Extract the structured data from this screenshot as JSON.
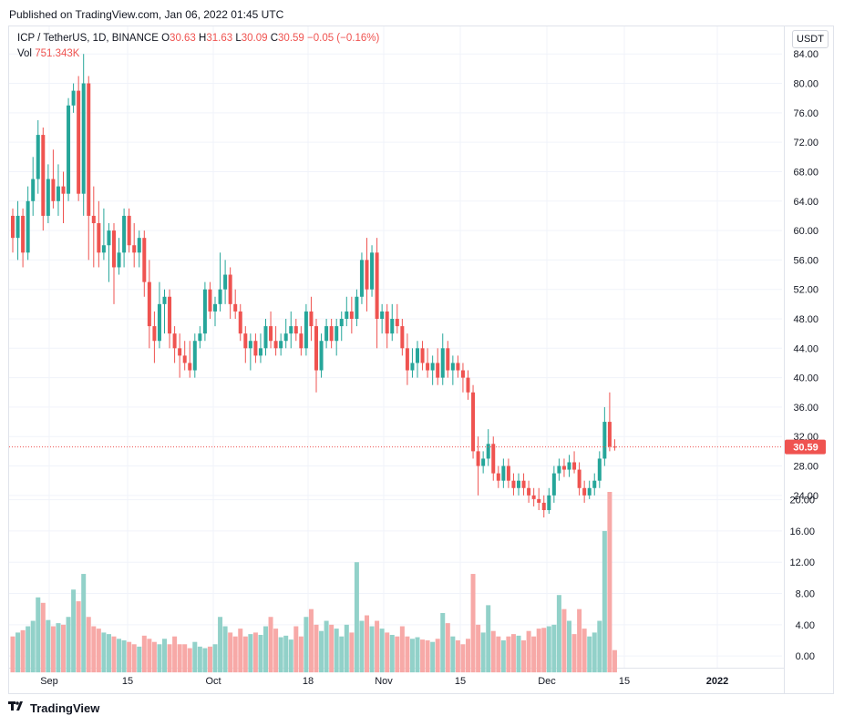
{
  "published_text": "Published on TradingView.com, Jan 06, 2022 01:45 UTC",
  "legend": {
    "symbol": "ICP / TetherUS, 1D, BINANCE",
    "o_label": "O",
    "o": "30.63",
    "h_label": "H",
    "h": "31.63",
    "l_label": "L",
    "l": "30.09",
    "c_label": "C",
    "c": "30.59",
    "change": "−0.05 (−0.16%)",
    "vol_label": "Vol",
    "vol": "751.343K"
  },
  "currency_button": "USDT",
  "last_price_label": "30.59",
  "brand": "TradingView",
  "colors": {
    "up": "#26a69a",
    "down": "#ef5350",
    "vol_up": "#92d1c9",
    "vol_down": "#f7a9a7",
    "grid": "#f0f3fa"
  },
  "chart_data": {
    "type": "candlestick",
    "price_axis": {
      "ticks": [
        "84.00",
        "80.00",
        "76.00",
        "72.00",
        "68.00",
        "64.00",
        "60.00",
        "56.00",
        "52.00",
        "48.00",
        "44.00",
        "40.00",
        "36.00",
        "32.00",
        "28.00",
        "24.00"
      ],
      "range": [
        22,
        87
      ]
    },
    "volume_axis": {
      "ticks": [
        "20.00",
        "16.00",
        "12.00",
        "8.00",
        "4.00",
        "0.00"
      ],
      "unit": "M",
      "range": [
        -1.5,
        21
      ]
    },
    "time_axis": {
      "ticks": [
        "Sep",
        "15",
        "Oct",
        "18",
        "Nov",
        "15",
        "Dec",
        "15",
        "2022"
      ]
    },
    "last_price": 30.59,
    "candles": [
      [
        62.0,
        63.0,
        57.0,
        59.0,
        2.5
      ],
      [
        59.0,
        64.0,
        56.0,
        62.0,
        3.0
      ],
      [
        62.0,
        63.0,
        55.0,
        57.0,
        3.3
      ],
      [
        57.0,
        66.0,
        56.0,
        64.0,
        3.8
      ],
      [
        64.0,
        70.0,
        62.0,
        67.0,
        4.5
      ],
      [
        67.0,
        75.0,
        65.0,
        73.0,
        7.5
      ],
      [
        73.0,
        74.0,
        60.0,
        62.0,
        6.8
      ],
      [
        62.0,
        69.0,
        61.0,
        67.0,
        4.6
      ],
      [
        67.0,
        71.0,
        63.0,
        64.0,
        3.8
      ],
      [
        64.0,
        69.0,
        62.0,
        66.0,
        4.2
      ],
      [
        66.0,
        68.0,
        61.0,
        65.0,
        4.0
      ],
      [
        65.0,
        78.0,
        64.0,
        77.0,
        5.0
      ],
      [
        77.0,
        80.0,
        76.0,
        79.0,
        8.5
      ],
      [
        79.0,
        81.0,
        64.0,
        65.0,
        7.0
      ],
      [
        65.0,
        84.0,
        62.0,
        80.0,
        10.5
      ],
      [
        80.0,
        81.0,
        56.0,
        62.0,
        5.0
      ],
      [
        62.0,
        66.0,
        55.0,
        61.0,
        3.8
      ],
      [
        61.0,
        64.0,
        55.0,
        57.0,
        3.5
      ],
      [
        57.0,
        63.0,
        56.0,
        58.0,
        3.0
      ],
      [
        58.0,
        61.0,
        53.0,
        60.0,
        2.8
      ],
      [
        60.0,
        61.0,
        50.0,
        55.0,
        2.5
      ],
      [
        55.0,
        59.0,
        54.0,
        57.0,
        2.2
      ],
      [
        57.0,
        63.0,
        55.0,
        62.0,
        2.0
      ],
      [
        62.0,
        63.0,
        57.0,
        58.0,
        1.8
      ],
      [
        58.0,
        61.0,
        55.0,
        57.0,
        1.5
      ],
      [
        57.0,
        60.0,
        55.0,
        59.0,
        1.2
      ],
      [
        59.0,
        60.0,
        51.0,
        53.0,
        2.6
      ],
      [
        53.0,
        56.0,
        44.0,
        47.0,
        2.2
      ],
      [
        47.0,
        49.0,
        42.0,
        45.0,
        1.8
      ],
      [
        45.0,
        53.0,
        44.0,
        50.0,
        1.5
      ],
      [
        50.0,
        52.0,
        46.0,
        51.0,
        2.2
      ],
      [
        51.0,
        52.0,
        44.0,
        46.0,
        1.5
      ],
      [
        46.0,
        47.0,
        42.0,
        44.0,
        2.5
      ],
      [
        44.0,
        46.0,
        40.0,
        43.0,
        1.5
      ],
      [
        43.0,
        45.0,
        41.0,
        42.0,
        1.5
      ],
      [
        42.0,
        45.0,
        40.0,
        41.0,
        1.0
      ],
      [
        41.0,
        46.0,
        40.0,
        45.0,
        1.8
      ],
      [
        45.0,
        47.0,
        44.0,
        46.0,
        1.2
      ],
      [
        46.0,
        53.0,
        45.0,
        52.0,
        1.0
      ],
      [
        52.0,
        53.0,
        48.0,
        49.0,
        1.2
      ],
      [
        49.0,
        51.0,
        47.0,
        50.0,
        1.5
      ],
      [
        50.0,
        57.0,
        49.0,
        52.0,
        5.0
      ],
      [
        52.0,
        56.0,
        50.0,
        54.0,
        3.8
      ],
      [
        54.0,
        55.0,
        48.0,
        50.0,
        3.0
      ],
      [
        50.0,
        52.0,
        48.0,
        49.0,
        2.5
      ],
      [
        49.0,
        50.0,
        45.0,
        46.0,
        3.5
      ],
      [
        46.0,
        47.0,
        42.0,
        44.0,
        2.5
      ],
      [
        44.0,
        46.0,
        41.0,
        45.0,
        2.8
      ],
      [
        45.0,
        46.0,
        42.0,
        43.0,
        3.0
      ],
      [
        43.0,
        46.0,
        42.0,
        44.0,
        2.7
      ],
      [
        44.0,
        48.0,
        43.0,
        47.0,
        3.8
      ],
      [
        47.0,
        49.0,
        44.0,
        45.0,
        5.0
      ],
      [
        45.0,
        47.0,
        43.0,
        44.0,
        3.5
      ],
      [
        44.0,
        46.0,
        43.0,
        45.0,
        2.4
      ],
      [
        45.0,
        48.0,
        44.0,
        46.0,
        2.6
      ],
      [
        46.0,
        49.0,
        44.0,
        47.0,
        2.1
      ],
      [
        47.0,
        48.0,
        45.0,
        46.0,
        3.8
      ],
      [
        46.0,
        47.0,
        43.0,
        44.0,
        2.5
      ],
      [
        44.0,
        50.0,
        43.0,
        49.0,
        5.0
      ],
      [
        49.0,
        51.0,
        45.0,
        47.0,
        6.0
      ],
      [
        47.0,
        48.0,
        38.0,
        41.0,
        4.0
      ],
      [
        41.0,
        46.0,
        40.0,
        45.0,
        3.2
      ],
      [
        45.0,
        48.0,
        44.0,
        47.0,
        4.5
      ],
      [
        47.0,
        48.0,
        44.0,
        45.0,
        4.0
      ],
      [
        45.0,
        48.0,
        43.0,
        47.0,
        3.5
      ],
      [
        47.0,
        49.0,
        45.0,
        48.0,
        2.5
      ],
      [
        48.0,
        51.0,
        47.0,
        49.0,
        4.0
      ],
      [
        49.0,
        51.0,
        46.0,
        48.0,
        3.0
      ],
      [
        48.0,
        52.0,
        47.0,
        51.0,
        12.0
      ],
      [
        51.0,
        57.0,
        50.0,
        56.0,
        4.5
      ],
      [
        56.0,
        59.0,
        49.0,
        52.0,
        5.2
      ],
      [
        52.0,
        58.0,
        51.0,
        57.0,
        3.8
      ],
      [
        57.0,
        59.0,
        44.0,
        48.0,
        4.5
      ],
      [
        48.0,
        50.0,
        46.0,
        49.0,
        3.5
      ],
      [
        49.0,
        50.0,
        44.0,
        46.0,
        3.0
      ],
      [
        46.0,
        50.0,
        45.0,
        48.0,
        2.7
      ],
      [
        48.0,
        50.0,
        46.0,
        47.0,
        2.5
      ],
      [
        47.0,
        48.0,
        43.0,
        44.0,
        3.8
      ],
      [
        44.0,
        46.0,
        39.0,
        41.0,
        2.5
      ],
      [
        41.0,
        44.0,
        40.0,
        42.0,
        2.2
      ],
      [
        42.0,
        45.0,
        40.0,
        44.0,
        2.4
      ],
      [
        44.0,
        45.0,
        41.0,
        42.0,
        2.1
      ],
      [
        42.0,
        44.0,
        40.0,
        41.0,
        2.0
      ],
      [
        41.0,
        43.0,
        39.0,
        42.0,
        1.8
      ],
      [
        42.0,
        44.0,
        39.0,
        40.0,
        2.2
      ],
      [
        40.0,
        46.0,
        39.0,
        44.0,
        5.5
      ],
      [
        44.0,
        45.0,
        40.0,
        41.0,
        4.2
      ],
      [
        41.0,
        43.0,
        39.0,
        42.0,
        2.5
      ],
      [
        42.0,
        43.0,
        40.0,
        41.0,
        2.0
      ],
      [
        41.0,
        42.0,
        38.0,
        40.0,
        1.5
      ],
      [
        40.0,
        41.0,
        37.0,
        38.0,
        2.2
      ],
      [
        38.0,
        39.0,
        29.0,
        30.0,
        10.5
      ],
      [
        30.0,
        32.0,
        24.0,
        28.0,
        4.0
      ],
      [
        28.0,
        30.0,
        27.0,
        29.0,
        3.0
      ],
      [
        29.0,
        33.0,
        28.0,
        31.0,
        6.5
      ],
      [
        31.0,
        32.0,
        26.0,
        27.0,
        3.2
      ],
      [
        27.0,
        28.0,
        25.0,
        26.0,
        2.5
      ],
      [
        26.0,
        29.0,
        25.0,
        28.0,
        2.0
      ],
      [
        28.0,
        29.0,
        25.0,
        26.0,
        2.5
      ],
      [
        26.0,
        27.0,
        24.0,
        25.0,
        2.8
      ],
      [
        25.0,
        27.0,
        24.0,
        26.0,
        2.6
      ],
      [
        26.0,
        27.0,
        24.0,
        25.0,
        2.0
      ],
      [
        25.0,
        26.0,
        23.0,
        24.0,
        3.2
      ],
      [
        24.0,
        25.0,
        22.5,
        23.5,
        2.5
      ],
      [
        23.5,
        25.0,
        22.0,
        23.0,
        3.5
      ],
      [
        23.0,
        24.0,
        21.0,
        22.0,
        3.6
      ],
      [
        22.0,
        25.0,
        21.5,
        24.0,
        3.8
      ],
      [
        24.0,
        28.0,
        23.0,
        27.0,
        4.0
      ],
      [
        27.0,
        29.0,
        26.0,
        28.0,
        7.8
      ],
      [
        28.0,
        29.0,
        26.5,
        27.5,
        6.0
      ],
      [
        27.5,
        29.5,
        26.5,
        28.5,
        4.5
      ],
      [
        28.5,
        30.0,
        27.0,
        27.5,
        2.8
      ],
      [
        27.5,
        28.5,
        24.0,
        25.0,
        6.0
      ],
      [
        25.0,
        26.0,
        23.0,
        24.0,
        3.5
      ],
      [
        24.0,
        26.0,
        23.5,
        25.0,
        2.5
      ],
      [
        25.0,
        27.0,
        24.0,
        26.0,
        3.0
      ],
      [
        26.0,
        30.0,
        25.0,
        29.0,
        4.5
      ],
      [
        29.0,
        36.0,
        28.0,
        34.0,
        16.0
      ],
      [
        34.0,
        38.0,
        30.0,
        30.63,
        21.0
      ],
      [
        30.63,
        31.63,
        30.09,
        30.59,
        0.75
      ]
    ]
  }
}
